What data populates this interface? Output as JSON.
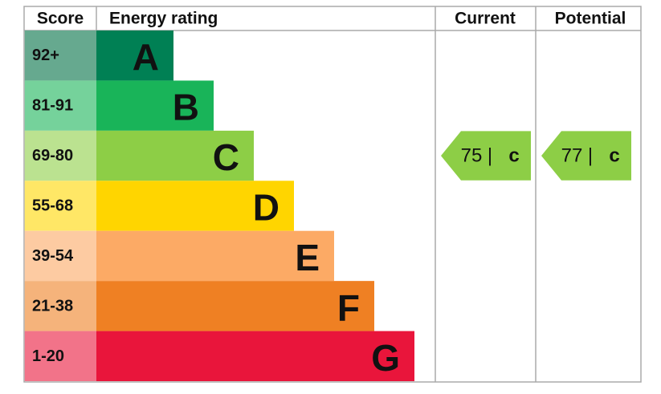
{
  "header": {
    "score": "Score",
    "rating": "Energy rating",
    "current": "Current",
    "potential": "Potential"
  },
  "bands": [
    {
      "score": "92+",
      "letter": "A",
      "color": "#008054",
      "light": "#66a98f"
    },
    {
      "score": "81-91",
      "letter": "B",
      "color": "#19b459",
      "light": "#75d29b"
    },
    {
      "score": "69-80",
      "letter": "C",
      "color": "#8dce46",
      "light": "#bbe290"
    },
    {
      "score": "55-68",
      "letter": "D",
      "color": "#ffd500",
      "light": "#ffe766"
    },
    {
      "score": "39-54",
      "letter": "E",
      "color": "#fcaa65",
      "light": "#fdcba2"
    },
    {
      "score": "21-38",
      "letter": "F",
      "color": "#ef8023",
      "light": "#f5b37b"
    },
    {
      "score": "1-20",
      "letter": "G",
      "color": "#e9153b",
      "light": "#f27389"
    }
  ],
  "current": {
    "score": 75,
    "separator": "|",
    "letter": "c"
  },
  "potential": {
    "score": 77,
    "separator": "|",
    "letter": "c"
  }
}
